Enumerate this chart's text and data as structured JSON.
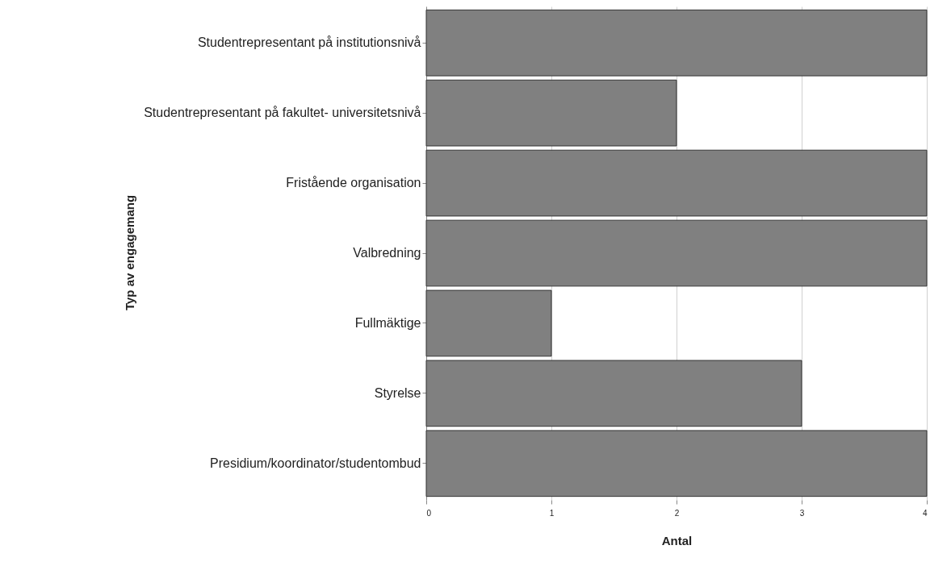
{
  "chart_data": {
    "type": "bar",
    "orientation": "horizontal",
    "xlabel": "Antal",
    "ylabel": "Typ av engagemang",
    "categories": [
      "Studentrepresentant på institutionsnivå",
      "Studentrepresentant på fakultet- universitetsnivå",
      "Fristående organisation",
      "Valbredning",
      "Fullmäktige",
      "Styrelse",
      "Presidium/koordinator/studentombud"
    ],
    "values": [
      4,
      2,
      4,
      4,
      1,
      3,
      4
    ],
    "color": "#808080",
    "xlim": [
      0,
      4
    ],
    "xticks": [
      0,
      1,
      2,
      3,
      4
    ],
    "grid": "x"
  }
}
